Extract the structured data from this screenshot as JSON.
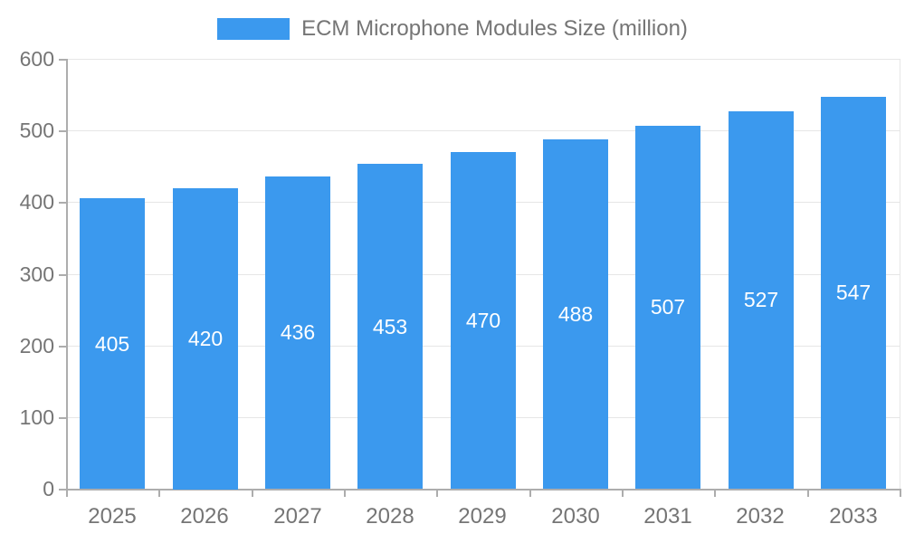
{
  "chart_data": {
    "type": "bar",
    "title": "ECM Microphone Modules Size (million)",
    "legend": [
      "ECM Microphone Modules Size (million)"
    ],
    "legend_position": "top-center",
    "categories": [
      "2025",
      "2026",
      "2027",
      "2028",
      "2029",
      "2030",
      "2031",
      "2032",
      "2033"
    ],
    "series": [
      {
        "name": "ECM Microphone Modules Size (million)",
        "values": [
          405,
          420,
          436,
          453,
          470,
          488,
          507,
          527,
          547
        ]
      }
    ],
    "value_labels_shown": true,
    "xlabel": "",
    "ylabel": "",
    "ylim": [
      0,
      600
    ],
    "yticks": [
      0,
      100,
      200,
      300,
      400,
      500,
      600
    ],
    "grid": true,
    "colors": {
      "bar": "#3B99EE",
      "axis_text": "#757575",
      "value_label_text": "#FFFFFF",
      "grid_line": "#E6E6E6",
      "axis_line": "#ADADAD",
      "background": "#FFFFFF"
    }
  }
}
